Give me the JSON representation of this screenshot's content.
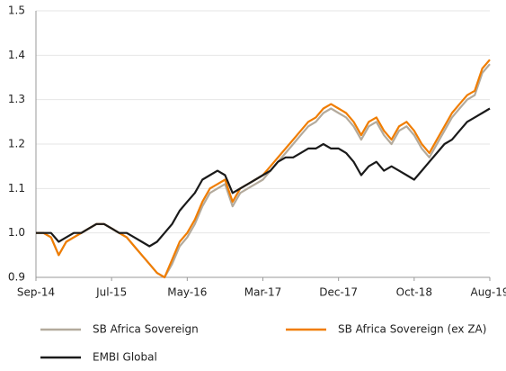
{
  "chart_data": {
    "type": "line",
    "categories": [
      "Sep-14",
      null,
      null,
      null,
      null,
      null,
      null,
      null,
      null,
      null,
      "Jul-15",
      null,
      null,
      null,
      null,
      null,
      null,
      null,
      null,
      null,
      "May-16",
      null,
      null,
      null,
      null,
      null,
      null,
      null,
      null,
      null,
      "Mar-17",
      null,
      null,
      null,
      null,
      null,
      null,
      null,
      null,
      null,
      "Dec-17",
      null,
      null,
      null,
      null,
      null,
      null,
      null,
      null,
      null,
      "Oct-18",
      null,
      null,
      null,
      null,
      null,
      null,
      null,
      null,
      null,
      "Aug-19"
    ],
    "series": [
      {
        "name": "SB Africa Sovereign",
        "color": "#b3aa9c",
        "values": [
          1.0,
          1.0,
          0.99,
          0.95,
          0.98,
          0.99,
          1.0,
          1.01,
          1.02,
          1.02,
          1.01,
          1.0,
          0.99,
          0.97,
          0.95,
          0.93,
          0.91,
          0.9,
          0.93,
          0.97,
          0.99,
          1.02,
          1.06,
          1.09,
          1.1,
          1.11,
          1.06,
          1.09,
          1.1,
          1.11,
          1.12,
          1.14,
          1.16,
          1.18,
          1.2,
          1.22,
          1.24,
          1.25,
          1.27,
          1.28,
          1.27,
          1.26,
          1.24,
          1.21,
          1.24,
          1.25,
          1.22,
          1.2,
          1.23,
          1.24,
          1.22,
          1.19,
          1.17,
          1.2,
          1.23,
          1.26,
          1.28,
          1.3,
          1.31,
          1.36,
          1.38
        ]
      },
      {
        "name": "SB Africa Sovereign (ex ZA)",
        "color": "#f07d00",
        "values": [
          1.0,
          1.0,
          0.99,
          0.95,
          0.98,
          0.99,
          1.0,
          1.01,
          1.02,
          1.02,
          1.01,
          1.0,
          0.99,
          0.97,
          0.95,
          0.93,
          0.91,
          0.9,
          0.94,
          0.98,
          1.0,
          1.03,
          1.07,
          1.1,
          1.11,
          1.12,
          1.07,
          1.1,
          1.11,
          1.12,
          1.13,
          1.15,
          1.17,
          1.19,
          1.21,
          1.23,
          1.25,
          1.26,
          1.28,
          1.29,
          1.28,
          1.27,
          1.25,
          1.22,
          1.25,
          1.26,
          1.23,
          1.21,
          1.24,
          1.25,
          1.23,
          1.2,
          1.18,
          1.21,
          1.24,
          1.27,
          1.29,
          1.31,
          1.32,
          1.37,
          1.39
        ]
      },
      {
        "name": "EMBI Global",
        "color": "#1a1a1a",
        "values": [
          1.0,
          1.0,
          1.0,
          0.98,
          0.99,
          1.0,
          1.0,
          1.01,
          1.02,
          1.02,
          1.01,
          1.0,
          1.0,
          0.99,
          0.98,
          0.97,
          0.98,
          1.0,
          1.02,
          1.05,
          1.07,
          1.09,
          1.12,
          1.13,
          1.14,
          1.13,
          1.09,
          1.1,
          1.11,
          1.12,
          1.13,
          1.14,
          1.16,
          1.17,
          1.17,
          1.18,
          1.19,
          1.19,
          1.2,
          1.19,
          1.19,
          1.18,
          1.16,
          1.13,
          1.15,
          1.16,
          1.14,
          1.15,
          1.14,
          1.13,
          1.12,
          1.14,
          1.16,
          1.18,
          1.2,
          1.21,
          1.23,
          1.25,
          1.26,
          1.27,
          1.28
        ]
      }
    ],
    "ylim": [
      0.9,
      1.5
    ],
    "yticks": [
      0.9,
      1.0,
      1.1,
      1.2,
      1.3,
      1.4,
      1.5
    ],
    "grid": true,
    "legend": "bottom"
  }
}
